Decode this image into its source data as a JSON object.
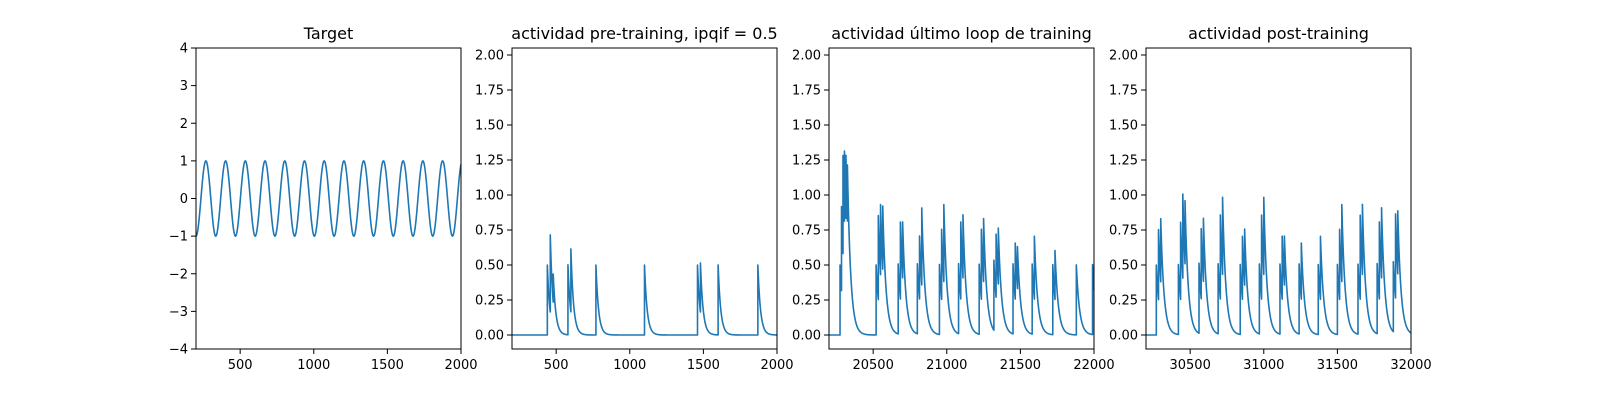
{
  "chart_data": [
    {
      "type": "line",
      "title": "Target",
      "xlabel": "",
      "ylabel": "",
      "xlim": [
        200,
        2000
      ],
      "ylim": [
        -4,
        4
      ],
      "xticks": [
        500,
        1000,
        1500,
        2000
      ],
      "yticks": [
        -4,
        -3,
        -2,
        -1,
        0,
        1,
        2,
        3,
        4
      ],
      "xtick_labels": [
        "500",
        "1000",
        "1500",
        "2000"
      ],
      "ytick_labels": [
        "−4",
        "−3",
        "−2",
        "−1",
        "0",
        "1",
        "2",
        "3",
        "4"
      ],
      "grid": false,
      "series": [
        {
          "kind": "sine",
          "amplitude": 1.0,
          "period": 134,
          "phase_min_at": 200,
          "color": "#1f77b4"
        }
      ]
    },
    {
      "type": "line",
      "title": "actividad pre-training, ipqif = 0.5",
      "xlabel": "",
      "ylabel": "",
      "xlim": [
        200,
        2000
      ],
      "ylim": [
        -0.1,
        2.05
      ],
      "xticks": [
        500,
        1000,
        1500,
        2000
      ],
      "yticks": [
        0.0,
        0.25,
        0.5,
        0.75,
        1.0,
        1.25,
        1.5,
        1.75,
        2.0
      ],
      "xtick_labels": [
        "500",
        "1000",
        "1500",
        "2000"
      ],
      "ytick_labels": [
        "0.00",
        "0.25",
        "0.50",
        "0.75",
        "1.00",
        "1.25",
        "1.50",
        "1.75",
        "2.00"
      ],
      "grid": false,
      "series": [
        {
          "kind": "spikes",
          "decay": 18,
          "color": "#1f77b4",
          "spikes": [
            [
              440,
              0.5
            ],
            [
              460,
              0.55
            ],
            [
              480,
              0.2
            ],
            [
              580,
              0.5
            ],
            [
              600,
              0.45
            ],
            [
              770,
              0.5
            ],
            [
              1100,
              0.5
            ],
            [
              1460,
              0.5
            ],
            [
              1480,
              0.35
            ],
            [
              1600,
              0.5
            ],
            [
              1870,
              0.5
            ]
          ]
        }
      ]
    },
    {
      "type": "line",
      "title": "actividad último loop de training",
      "xlabel": "",
      "ylabel": "",
      "xlim": [
        20200,
        22000
      ],
      "ylim": [
        -0.1,
        2.05
      ],
      "xticks": [
        20500,
        21000,
        21500,
        22000
      ],
      "yticks": [
        0.0,
        0.25,
        0.5,
        0.75,
        1.0,
        1.25,
        1.5,
        1.75,
        2.0
      ],
      "xtick_labels": [
        "20500",
        "21000",
        "21500",
        "22000"
      ],
      "ytick_labels": [
        "0.00",
        "0.25",
        "0.50",
        "0.75",
        "1.00",
        "1.25",
        "1.50",
        "1.75",
        "2.00"
      ],
      "grid": false,
      "series": [
        {
          "kind": "spikes",
          "decay": 22,
          "color": "#1f77b4",
          "spikes": [
            [
              20275,
              0.5
            ],
            [
              20285,
              0.6
            ],
            [
              20295,
              0.7
            ],
            [
              20305,
              0.5
            ],
            [
              20315,
              0.45
            ],
            [
              20325,
              0.4
            ],
            [
              20520,
              0.5
            ],
            [
              20535,
              0.6
            ],
            [
              20550,
              0.5
            ],
            [
              20565,
              0.45
            ],
            [
              20670,
              0.5
            ],
            [
              20685,
              0.55
            ],
            [
              20700,
              0.4
            ],
            [
              20800,
              0.5
            ],
            [
              20815,
              0.45
            ],
            [
              20830,
              0.55
            ],
            [
              20950,
              0.5
            ],
            [
              20965,
              0.5
            ],
            [
              20980,
              0.55
            ],
            [
              21080,
              0.5
            ],
            [
              21095,
              0.55
            ],
            [
              21110,
              0.45
            ],
            [
              21220,
              0.5
            ],
            [
              21235,
              0.5
            ],
            [
              21250,
              0.45
            ],
            [
              21320,
              0.5
            ],
            [
              21335,
              0.45
            ],
            [
              21350,
              0.4
            ],
            [
              21450,
              0.5
            ],
            [
              21465,
              0.4
            ],
            [
              21480,
              0.3
            ],
            [
              21580,
              0.5
            ],
            [
              21595,
              0.45
            ],
            [
              21720,
              0.5
            ],
            [
              21735,
              0.35
            ],
            [
              21880,
              0.5
            ],
            [
              21990,
              0.5
            ]
          ]
        }
      ]
    },
    {
      "type": "line",
      "title": "actividad post-training",
      "xlabel": "",
      "ylabel": "",
      "xlim": [
        30200,
        32000
      ],
      "ylim": [
        -0.1,
        2.05
      ],
      "xticks": [
        30500,
        31000,
        31500,
        32000
      ],
      "yticks": [
        0.0,
        0.25,
        0.5,
        0.75,
        1.0,
        1.25,
        1.5,
        1.75,
        2.0
      ],
      "xtick_labels": [
        "30500",
        "31000",
        "31500",
        "32000"
      ],
      "ytick_labels": [
        "0.00",
        "0.25",
        "0.50",
        "0.75",
        "1.00",
        "1.25",
        "1.50",
        "1.75",
        "2.00"
      ],
      "grid": false,
      "series": [
        {
          "kind": "spikes",
          "decay": 22,
          "color": "#1f77b4",
          "spikes": [
            [
              30270,
              0.5
            ],
            [
              30285,
              0.5
            ],
            [
              30300,
              0.45
            ],
            [
              30420,
              0.5
            ],
            [
              30435,
              0.55
            ],
            [
              30450,
              0.6
            ],
            [
              30465,
              0.45
            ],
            [
              30560,
              0.5
            ],
            [
              30575,
              0.5
            ],
            [
              30590,
              0.45
            ],
            [
              30690,
              0.5
            ],
            [
              30705,
              0.6
            ],
            [
              30720,
              0.55
            ],
            [
              30840,
              0.5
            ],
            [
              30855,
              0.45
            ],
            [
              30870,
              0.4
            ],
            [
              30970,
              0.5
            ],
            [
              30985,
              0.6
            ],
            [
              31000,
              0.55
            ],
            [
              31110,
              0.5
            ],
            [
              31125,
              0.45
            ],
            [
              31140,
              0.35
            ],
            [
              31240,
              0.5
            ],
            [
              31255,
              0.4
            ],
            [
              31370,
              0.5
            ],
            [
              31385,
              0.45
            ],
            [
              31500,
              0.5
            ],
            [
              31515,
              0.5
            ],
            [
              31530,
              0.55
            ],
            [
              31640,
              0.5
            ],
            [
              31655,
              0.6
            ],
            [
              31670,
              0.5
            ],
            [
              31770,
              0.5
            ],
            [
              31785,
              0.55
            ],
            [
              31800,
              0.5
            ],
            [
              31880,
              0.5
            ],
            [
              31895,
              0.6
            ],
            [
              31910,
              0.45
            ]
          ]
        }
      ]
    }
  ]
}
